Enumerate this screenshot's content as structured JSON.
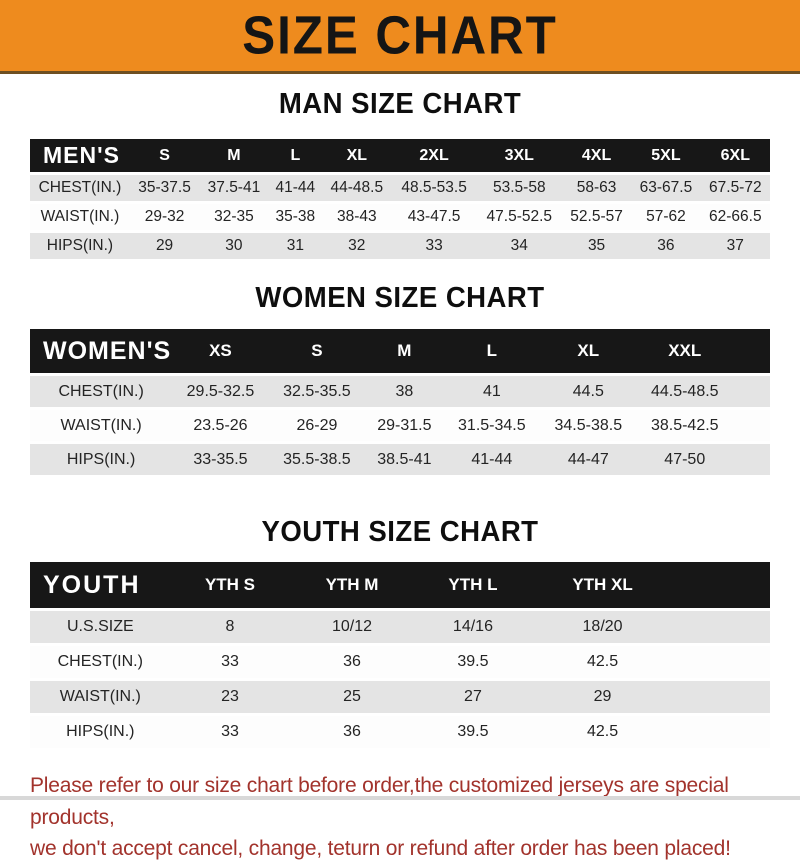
{
  "banner": {
    "title": "SIZE CHART"
  },
  "sections": [
    {
      "id": "men",
      "heading": "MAN SIZE CHART",
      "table": {
        "corner_label": "MEN'S",
        "columns": [
          "S",
          "M",
          "L",
          "XL",
          "2XL",
          "3XL",
          "4XL",
          "5XL",
          "6XL"
        ],
        "rows": [
          {
            "label": "CHEST(IN.)",
            "values": [
              "35-37.5",
              "37.5-41",
              "41-44",
              "44-48.5",
              "48.5-53.5",
              "53.5-58",
              "58-63",
              "63-67.5",
              "67.5-72"
            ]
          },
          {
            "label": "WAIST(IN.)",
            "values": [
              "29-32",
              "32-35",
              "35-38",
              "38-43",
              "43-47.5",
              "47.5-52.5",
              "52.5-57",
              "57-62",
              "62-66.5"
            ]
          },
          {
            "label": "HIPS(IN.)",
            "values": [
              "29",
              "30",
              "31",
              "32",
              "33",
              "34",
              "35",
              "36",
              "37"
            ]
          }
        ]
      }
    },
    {
      "id": "women",
      "heading": "WOMEN SIZE CHART",
      "table": {
        "corner_label": "WOMEN'S",
        "columns": [
          "XS",
          "S",
          "M",
          "L",
          "XL",
          "XXL"
        ],
        "rows": [
          {
            "label": "CHEST(IN.)",
            "values": [
              "29.5-32.5",
              "32.5-35.5",
              "38",
              "41",
              "44.5",
              "44.5-48.5"
            ]
          },
          {
            "label": "WAIST(IN.)",
            "values": [
              "23.5-26",
              "26-29",
              "29-31.5",
              "31.5-34.5",
              "34.5-38.5",
              "38.5-42.5"
            ]
          },
          {
            "label": "HIPS(IN.)",
            "values": [
              "33-35.5",
              "35.5-38.5",
              "38.5-41",
              "41-44",
              "44-47",
              "47-50"
            ]
          }
        ]
      }
    },
    {
      "id": "youth",
      "heading": "YOUTH SIZE CHART",
      "table": {
        "corner_label": "YOUTH",
        "columns": [
          "YTH S",
          "YTH M",
          "YTH L",
          "YTH XL"
        ],
        "rows": [
          {
            "label": "U.S.SIZE",
            "values": [
              "8",
              "10/12",
              "14/16",
              "18/20"
            ]
          },
          {
            "label": "CHEST(IN.)",
            "values": [
              "33",
              "36",
              "39.5",
              "42.5"
            ]
          },
          {
            "label": "WAIST(IN.)",
            "values": [
              "23",
              "25",
              "27",
              "29"
            ]
          },
          {
            "label": "HIPS(IN.)",
            "values": [
              "33",
              "36",
              "39.5",
              "42.5"
            ]
          }
        ]
      }
    }
  ],
  "footer": {
    "line1": "Please refer to our size chart before order,the customized jerseys are special products,",
    "line2": "we don't accept cancel, change, teturn or refund after order has been placed!"
  },
  "colors": {
    "banner_bg": "#EE8B1E",
    "banner_text": "#151515",
    "table_header_bg": "#171717",
    "table_header_text": "#FFFFFF",
    "row_alt_bg": "#E4E4E4",
    "row_bg": "#FDFDFD",
    "note_text": "#A2332C"
  }
}
